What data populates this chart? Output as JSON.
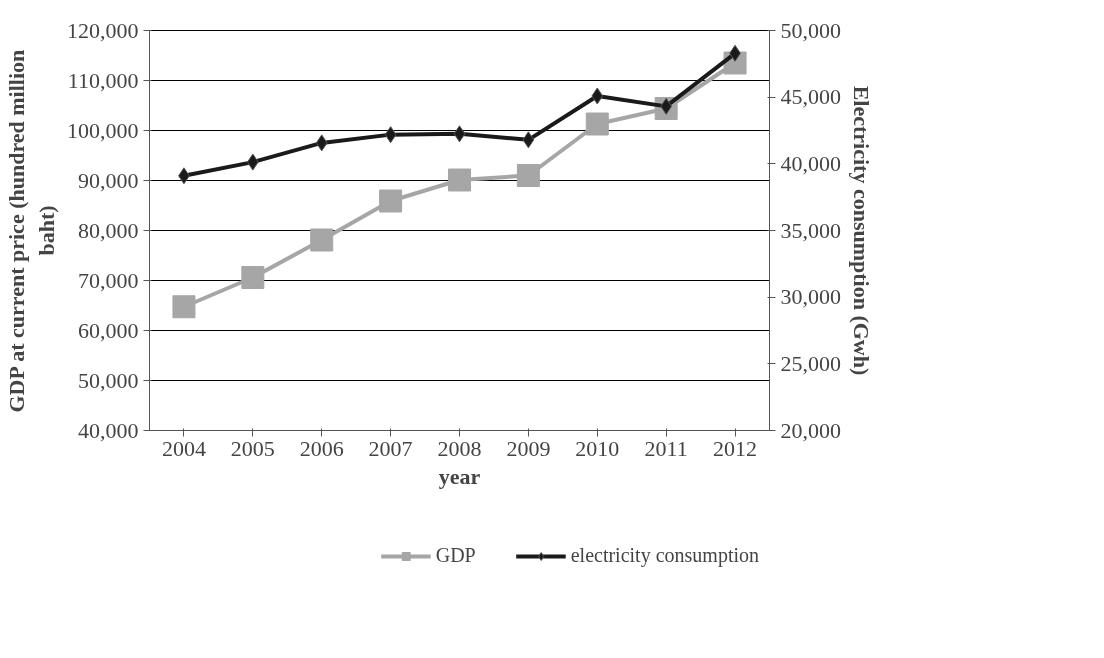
{
  "chart_data": {
    "type": "line",
    "xlabel": "year",
    "ylabel": "GDP at current price (hundred million baht)",
    "y2label": "Electricity consumption (Gwh)",
    "categories": [
      "2004",
      "2005",
      "2006",
      "2007",
      "2008",
      "2009",
      "2010",
      "2011",
      "2012"
    ],
    "series": [
      {
        "name": "GDP",
        "color": "#a6a6a6",
        "marker": "square",
        "values": [
          64750,
          70600,
          78100,
          85900,
          90100,
          91000,
          101300,
          104400,
          113500
        ]
      },
      {
        "name": "electricity consumption",
        "color": "#1a1a1a",
        "marker": "diamond",
        "axis": "y2",
        "values": [
          39100,
          40130,
          41570,
          42190,
          42250,
          41800,
          45090,
          44310,
          48290
        ]
      }
    ],
    "ylim": [
      40000,
      120000
    ],
    "yticks": [
      {
        "value": 40000,
        "label": "40,000"
      },
      {
        "value": 50000,
        "label": "50,000"
      },
      {
        "value": 60000,
        "label": "60,000"
      },
      {
        "value": 70000,
        "label": "70,000"
      },
      {
        "value": 80000,
        "label": "80,000"
      },
      {
        "value": 90000,
        "label": "90,000"
      },
      {
        "value": 100000,
        "label": "100,000"
      },
      {
        "value": 110000,
        "label": "110,000"
      },
      {
        "value": 120000,
        "label": "120,000"
      }
    ],
    "y2lim": [
      20000,
      50000
    ],
    "y2ticks": [
      {
        "value": 20000,
        "label": "20,000"
      },
      {
        "value": 25000,
        "label": "25,000"
      },
      {
        "value": 30000,
        "label": "30,000"
      },
      {
        "value": 35000,
        "label": "35,000"
      },
      {
        "value": 40000,
        "label": "40,000"
      },
      {
        "value": 45000,
        "label": "45,000"
      },
      {
        "value": 50000,
        "label": "50,000"
      }
    ],
    "grid": "y",
    "legend": "bottom",
    "line_style": "solid"
  }
}
